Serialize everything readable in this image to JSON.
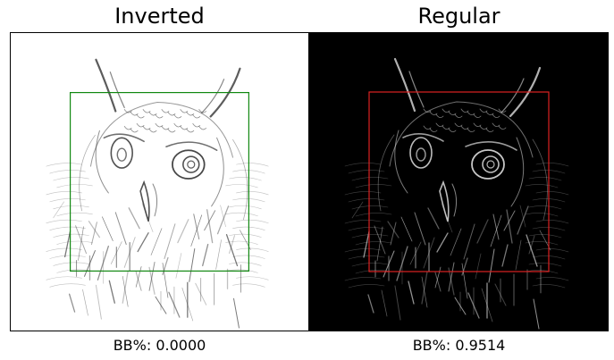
{
  "panels": [
    {
      "title": "Inverted",
      "caption": "BB%: 0.0000",
      "background": "#ffffff",
      "stroke_color": "#333333",
      "box_color": "#118811"
    },
    {
      "title": "Regular",
      "caption": "BB%: 0.9514",
      "background": "#000000",
      "stroke_color": "#dddddd",
      "box_color": "#dd2222"
    }
  ]
}
